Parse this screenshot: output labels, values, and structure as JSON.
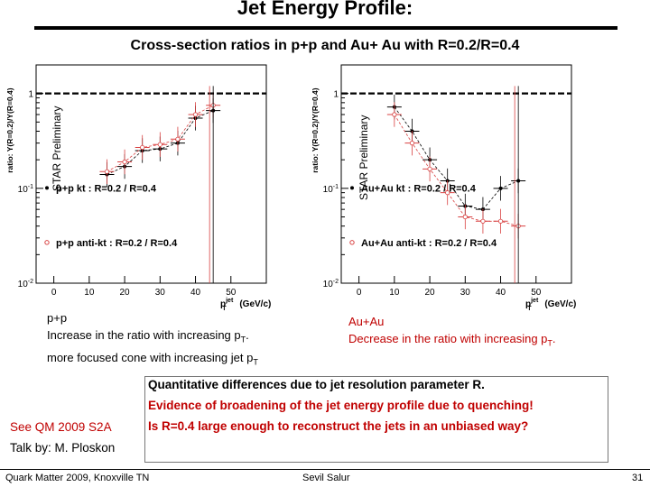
{
  "slide": {
    "title": "Jet Energy Profile:",
    "subtitle": "Cross-section ratios in p+p  and  Au+ Au with R=0.2/R=0.4"
  },
  "colors": {
    "accent_red": "#c00000",
    "pp_black": "#000000",
    "pp_red": "#d84040"
  },
  "chart_data": [
    {
      "type": "scatter",
      "title": "p+p",
      "ylabel": "ratio: Y(R=0.2)/Y(R=0.4)",
      "xlabel": "p",
      "xlabel_sup": "jet",
      "xlabel_sub": "T",
      "xlabel_unit": "(GeV/c)",
      "watermark": "STAR Preliminary",
      "yscale": "log",
      "ylim": [
        0.01,
        2
      ],
      "xlim": [
        -5,
        60
      ],
      "xticks": [
        "0",
        "10",
        "20",
        "30",
        "40",
        "50"
      ],
      "yticks": [
        {
          "value": 1,
          "label": "1"
        },
        {
          "value": 0.1,
          "label": "10-1"
        },
        {
          "value": 0.01,
          "label": "10-2"
        }
      ],
      "reference_line": 1,
      "series": [
        {
          "name": "p+p kt : R=0.2 / R=0.4",
          "color": "#000000",
          "marker": "dot",
          "x": [
            15,
            20,
            25,
            30,
            35,
            40,
            45
          ],
          "y": [
            0.14,
            0.17,
            0.25,
            0.26,
            0.3,
            0.55,
            0.66
          ]
        },
        {
          "name": "p+p anti-kt : R=0.2 / R=0.4",
          "color": "#d84040",
          "marker": "circle",
          "x": [
            15,
            20,
            25,
            30,
            35,
            40,
            45
          ],
          "y": [
            0.15,
            0.19,
            0.27,
            0.29,
            0.33,
            0.6,
            0.75
          ]
        }
      ]
    },
    {
      "type": "scatter",
      "title": "Au+Au",
      "ylabel": "ratio: Y(R=0.2)/Y(R=0.4)",
      "xlabel": "p",
      "xlabel_sup": "jet",
      "xlabel_sub": "T",
      "xlabel_unit": "(GeV/c)",
      "watermark": "STAR Preliminary",
      "yscale": "log",
      "ylim": [
        0.01,
        2
      ],
      "xlim": [
        -5,
        60
      ],
      "xticks": [
        "0",
        "10",
        "20",
        "30",
        "40",
        "50"
      ],
      "yticks": [
        {
          "value": 1,
          "label": "1"
        },
        {
          "value": 0.1,
          "label": "10-1"
        },
        {
          "value": 0.01,
          "label": "10-2"
        }
      ],
      "reference_line": 1,
      "series": [
        {
          "name": "Au+Au kt : R=0.2 / R=0.4",
          "color": "#000000",
          "marker": "dot",
          "x": [
            10,
            15,
            20,
            25,
            30,
            35,
            40,
            45
          ],
          "y": [
            0.72,
            0.4,
            0.2,
            0.12,
            0.065,
            0.06,
            0.1,
            0.12
          ]
        },
        {
          "name": "Au+Au anti-kt : R=0.2 / R=0.4",
          "color": "#d84040",
          "marker": "circle",
          "x": [
            10,
            15,
            20,
            25,
            30,
            35,
            40,
            45
          ],
          "y": [
            0.6,
            0.3,
            0.16,
            0.09,
            0.05,
            0.045,
            0.045,
            0.04
          ]
        }
      ]
    }
  ],
  "notes": {
    "pp_line1": "p+p",
    "pp_line2": "Increase in the ratio with increasing p",
    "pp_line2_sub": "T",
    "pp_line2_end": ".",
    "pp_line3": "more focused cone with increasing jet p",
    "pp_line3_sub": "T",
    "auau_line1": "Au+Au",
    "auau_line2": "Decrease in the ratio with increasing  p",
    "auau_line2_sub": "T",
    "auau_line2_end": "."
  },
  "conclusions": [
    "Quantitative differences due to jet resolution parameter R.",
    "Evidence of broadening of the jet energy profile due to quenching!",
    "Is R=0.4 large enough to reconstruct the jets in an unbiased way?"
  ],
  "references": {
    "see": "See QM 2009 S2A",
    "talk": "Talk by: M. Ploskon"
  },
  "footer": {
    "conference": "Quark Matter 2009, Knoxville TN",
    "author": "Sevil Salur",
    "page": "31"
  }
}
